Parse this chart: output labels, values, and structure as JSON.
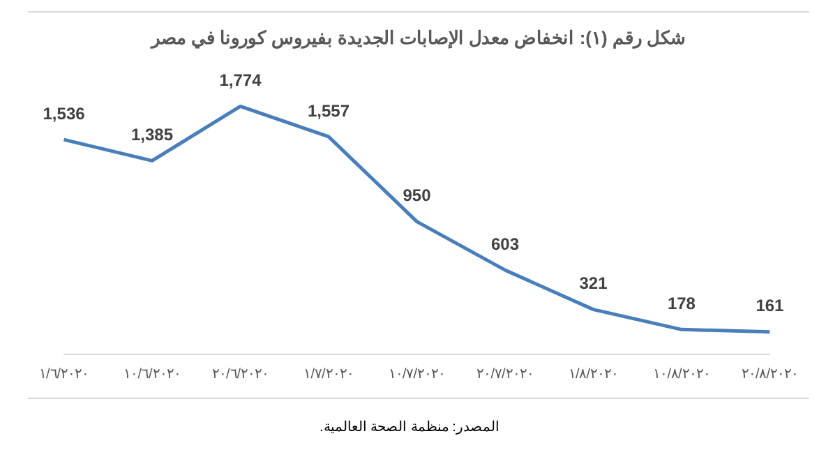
{
  "chart_data": {
    "type": "line",
    "title": "شكل رقم (١): انخفاض معدل الإصابات الجديدة بفيروس كورونا في مصر",
    "categories": [
      "١/٦/٢٠٢٠",
      "١٠/٦/٢٠٢٠",
      "٢٠/٦/٢٠٢٠",
      "١/٧/٢٠٢٠",
      "١٠/٧/٢٠٢٠",
      "٢٠/٧/٢٠٢٠",
      "١/٨/٢٠٢٠",
      "١٠/٨/٢٠٢٠",
      "٢٠/٨/٢٠٢٠"
    ],
    "values": [
      1536,
      1385,
      1774,
      1557,
      950,
      603,
      321,
      178,
      161
    ],
    "value_labels": [
      "1,536",
      "1,385",
      "1,774",
      "1,557",
      "950",
      "603",
      "321",
      "178",
      "161"
    ],
    "color": "#4a7ebb",
    "grid": false,
    "legend": false,
    "marker": "none",
    "annotations": [
      "المصدر: منظمة الصحة العالمية."
    ]
  }
}
